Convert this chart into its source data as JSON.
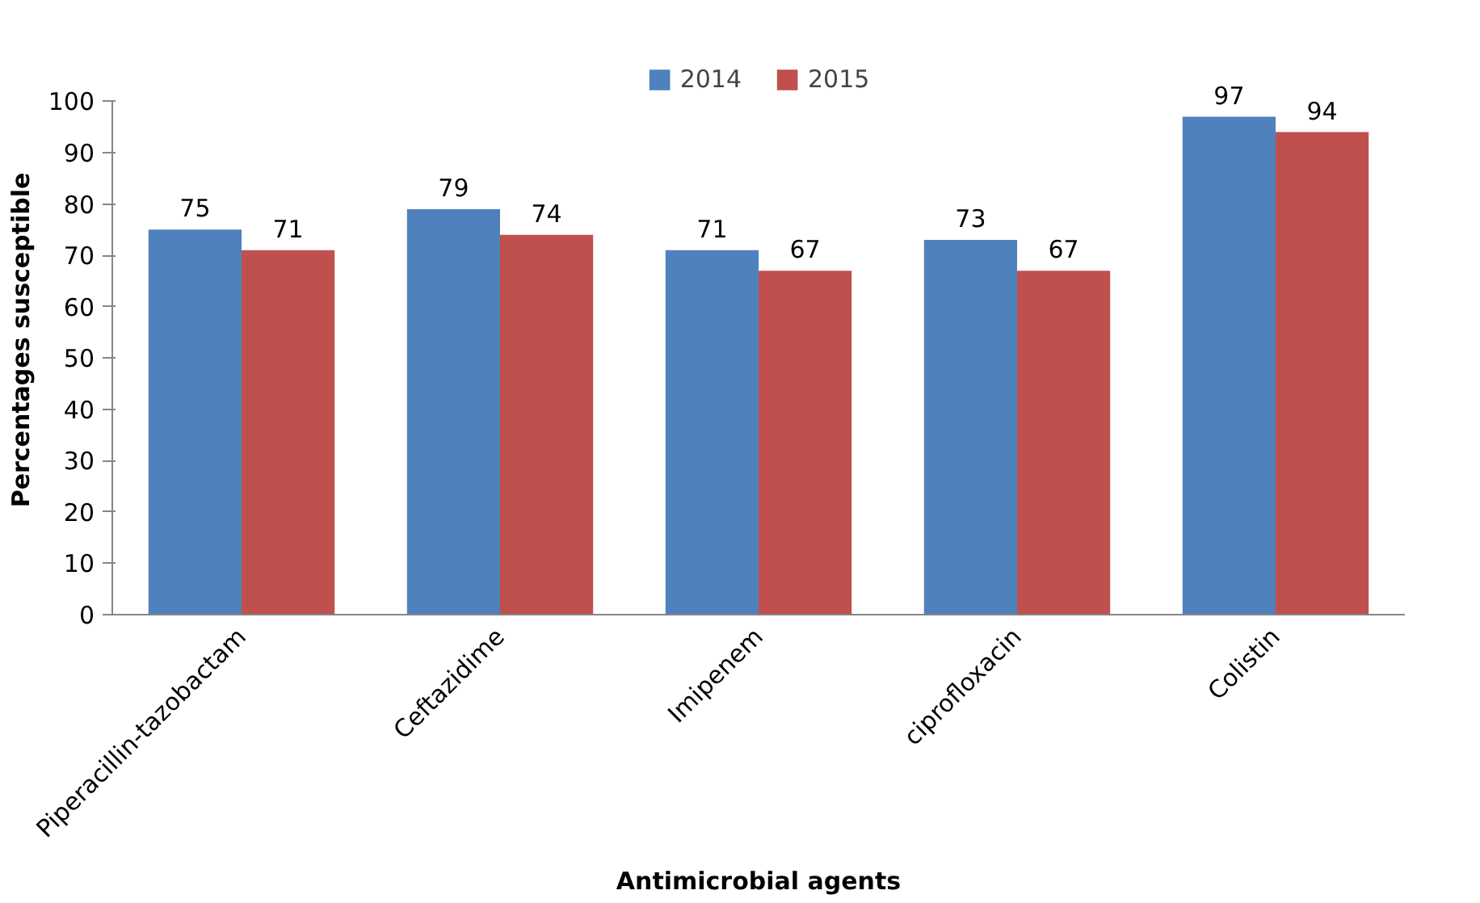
{
  "chart_data": {
    "type": "bar",
    "xlabel": "Antimicrobial agents",
    "ylabel": "Percentages susceptible",
    "categories": [
      "Piperacillin-tazobactam",
      "Ceftazidime",
      "Imipenem",
      "ciprofloxacin",
      "Colistin"
    ],
    "series": [
      {
        "name": "2014",
        "color": "#4f81bd",
        "values": [
          75,
          79,
          71,
          73,
          97
        ]
      },
      {
        "name": "2015",
        "color": "#c0504d",
        "values": [
          71,
          74,
          67,
          67,
          94
        ]
      }
    ],
    "ylim": [
      0,
      100
    ],
    "yticks": [
      0,
      10,
      20,
      30,
      40,
      50,
      60,
      70,
      80,
      90,
      100
    ],
    "data_labels": true,
    "legend": "top"
  }
}
